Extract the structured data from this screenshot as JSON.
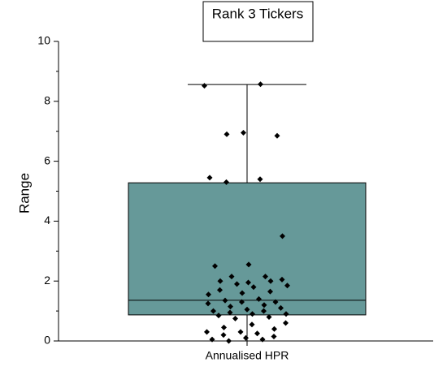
{
  "chart_data": {
    "type": "box",
    "title": "Rank 3 Tickers",
    "ylabel": "Range",
    "categories": [
      "Annualised HPR"
    ],
    "box": {
      "whisker_low": 0,
      "q1": 0.87,
      "median": 1.36,
      "q3": 5.28,
      "whisker_high": 8.56
    },
    "color": "#669999",
    "points": [
      8.52,
      8.57,
      6.9,
      6.85,
      6.95,
      5.45,
      5.4,
      5.3,
      3.5,
      2.55,
      2.5,
      2.15,
      2.15,
      2.05,
      1.95,
      2.0,
      2.0,
      1.9,
      1.85,
      1.8,
      1.7,
      1.65,
      1.6,
      1.55,
      1.4,
      1.35,
      1.3,
      1.3,
      1.25,
      1.2,
      1.15,
      1.1,
      1.05,
      1.0,
      1.0,
      0.95,
      0.9,
      0.9,
      0.85,
      0.8,
      0.75,
      0.6,
      0.55,
      0.45,
      0.4,
      0.3,
      0.3,
      0.25,
      0.2,
      0.15,
      0.1,
      0.05,
      0.05,
      0.0
    ],
    "ylim": [
      0,
      10
    ],
    "yticks": [
      0,
      2,
      4,
      6,
      8,
      10
    ],
    "yminorticks": [
      1,
      3,
      5,
      7,
      9
    ]
  }
}
